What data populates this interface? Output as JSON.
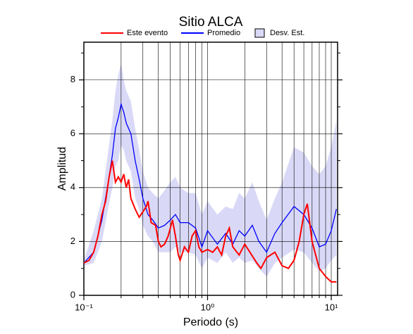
{
  "chart_data": {
    "type": "line",
    "title": "Sitio ALCA",
    "x_label": "Periodo (s)",
    "y_label": "Amplitud",
    "xlog": true,
    "grid": true,
    "xlim": [
      0.1,
      11.25
    ],
    "ylim": [
      0,
      9.4
    ],
    "xticks": [
      {
        "value": 0.1,
        "label": "10⁻¹"
      },
      {
        "value": 1,
        "label": "10⁰"
      },
      {
        "value": 10,
        "label": "10¹"
      }
    ],
    "xminorticks": [
      0.2,
      0.3,
      0.4,
      0.5,
      0.6,
      0.7,
      0.8,
      0.9,
      2,
      3,
      4,
      5,
      6,
      7,
      8,
      9
    ],
    "yticks": [
      0,
      2,
      4,
      6,
      8
    ],
    "yminorticks": [
      1,
      3,
      5,
      7,
      9
    ],
    "series": [
      {
        "name": "Este evento",
        "color": "#ff0000",
        "x": [
          0.1,
          0.11,
          0.12,
          0.13,
          0.14,
          0.15,
          0.16,
          0.17,
          0.18,
          0.19,
          0.2,
          0.21,
          0.22,
          0.23,
          0.24,
          0.26,
          0.28,
          0.3,
          0.32,
          0.33,
          0.35,
          0.38,
          0.4,
          0.42,
          0.45,
          0.48,
          0.5,
          0.52,
          0.55,
          0.58,
          0.6,
          0.65,
          0.7,
          0.75,
          0.8,
          0.85,
          0.9,
          1.0,
          1.1,
          1.2,
          1.3,
          1.4,
          1.5,
          1.6,
          1.8,
          2.0,
          2.2,
          2.5,
          2.7,
          3.0,
          3.5,
          4.0,
          4.5,
          5.0,
          5.5,
          6.0,
          6.4,
          7.0,
          8.0,
          9.0,
          10.0,
          11.0
        ],
        "values": [
          1.2,
          1.3,
          1.6,
          2.2,
          3.0,
          3.5,
          4.4,
          5.0,
          4.2,
          4.4,
          4.2,
          4.5,
          4.0,
          4.3,
          3.6,
          3.2,
          2.9,
          3.1,
          3.3,
          3.5,
          2.7,
          2.6,
          2.0,
          1.8,
          1.9,
          2.2,
          2.5,
          2.8,
          2.2,
          1.5,
          1.3,
          1.8,
          1.6,
          2.2,
          2.4,
          1.8,
          1.6,
          1.7,
          1.6,
          1.8,
          1.5,
          2.2,
          2.5,
          1.8,
          1.5,
          1.9,
          1.6,
          1.2,
          1.0,
          1.4,
          1.6,
          1.1,
          1.0,
          1.3,
          2.0,
          3.0,
          3.4,
          2.0,
          1.0,
          0.7,
          0.5,
          0.5
        ]
      },
      {
        "name": "Promedio",
        "color": "#0000ff",
        "x": [
          0.1,
          0.12,
          0.14,
          0.16,
          0.17,
          0.18,
          0.19,
          0.2,
          0.21,
          0.22,
          0.24,
          0.26,
          0.28,
          0.3,
          0.33,
          0.36,
          0.4,
          0.45,
          0.5,
          0.55,
          0.6,
          0.7,
          0.8,
          0.9,
          1.0,
          1.2,
          1.4,
          1.6,
          1.8,
          2.0,
          2.3,
          2.6,
          3.0,
          3.5,
          4.0,
          5.0,
          6.0,
          7.0,
          8.0,
          9.0,
          10.0,
          11.0
        ],
        "values": [
          1.2,
          1.6,
          2.8,
          4.4,
          5.2,
          6.2,
          6.6,
          7.1,
          6.8,
          6.4,
          6.0,
          5.0,
          4.3,
          3.6,
          3.0,
          2.8,
          2.5,
          2.6,
          2.8,
          3.0,
          2.7,
          2.7,
          2.5,
          1.8,
          2.4,
          1.9,
          2.3,
          1.9,
          2.4,
          2.2,
          2.6,
          2.0,
          1.6,
          2.3,
          2.7,
          3.3,
          3.0,
          2.5,
          1.8,
          1.9,
          2.4,
          3.2
        ]
      },
      {
        "name": "Desv. Est.",
        "color": "#d9d9f7",
        "type": "band",
        "x": [
          0.1,
          0.12,
          0.14,
          0.16,
          0.17,
          0.18,
          0.19,
          0.2,
          0.21,
          0.22,
          0.24,
          0.26,
          0.28,
          0.3,
          0.33,
          0.36,
          0.4,
          0.45,
          0.5,
          0.55,
          0.6,
          0.7,
          0.8,
          0.9,
          1.0,
          1.2,
          1.4,
          1.6,
          1.8,
          2.0,
          2.3,
          2.6,
          3.0,
          3.5,
          4.0,
          5.0,
          6.0,
          7.0,
          8.0,
          9.0,
          10.0,
          11.0
        ],
        "upper": [
          1.3,
          2.4,
          3.6,
          5.6,
          6.5,
          7.6,
          8.2,
          8.6,
          8.0,
          7.6,
          7.2,
          6.2,
          5.4,
          4.6,
          4.0,
          3.8,
          3.6,
          3.9,
          4.2,
          4.4,
          4.0,
          3.8,
          3.8,
          3.0,
          3.5,
          3.0,
          3.3,
          3.2,
          3.8,
          3.6,
          4.2,
          3.5,
          2.8,
          3.6,
          4.2,
          5.5,
          5.3,
          4.8,
          4.5,
          4.8,
          5.5,
          6.5
        ],
        "lower": [
          1.1,
          1.2,
          2.0,
          3.4,
          4.0,
          4.8,
          5.0,
          5.6,
          5.4,
          5.0,
          4.6,
          3.6,
          3.2,
          2.6,
          2.2,
          2.0,
          1.6,
          1.6,
          1.6,
          1.8,
          1.6,
          1.6,
          1.5,
          1.0,
          1.4,
          1.2,
          1.6,
          1.2,
          1.4,
          1.2,
          1.3,
          1.0,
          0.7,
          1.2,
          1.4,
          1.7,
          1.6,
          1.2,
          0.9,
          1.0,
          1.3,
          1.5
        ]
      }
    ]
  }
}
